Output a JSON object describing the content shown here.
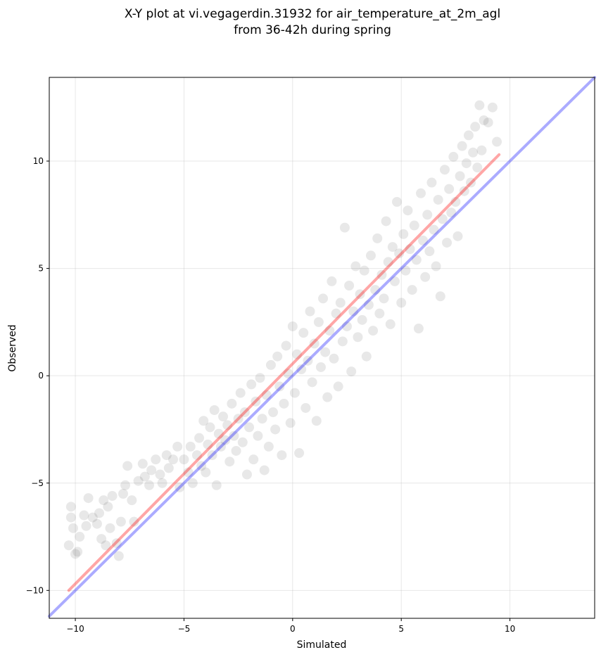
{
  "chart_data": {
    "type": "scatter",
    "title_line1": "X-Y plot at vi.vegagerdin.31932 for air_temperature_at_2m_agl",
    "title_line2": "from 36-42h during spring",
    "xlabel": "Simulated",
    "ylabel": "Observed",
    "xlim": [
      -11.2,
      13.9
    ],
    "ylim": [
      -11.3,
      13.9
    ],
    "xticks": [
      -10,
      -5,
      0,
      5,
      10
    ],
    "yticks": [
      -10,
      -5,
      0,
      5,
      10
    ],
    "xtick_labels": [
      "−10",
      "−5",
      "0",
      "5",
      "10"
    ],
    "ytick_labels": [
      "−10",
      "−5",
      "0",
      "5",
      "10"
    ],
    "grid": true,
    "colors": {
      "points": "#000000",
      "regression_line": "#ff0000",
      "identity_line": "#0000ff"
    },
    "series": [
      {
        "kind": "points",
        "description_points": [
          [
            -10.3,
            -7.9
          ],
          [
            -10.2,
            -6.1
          ],
          [
            -10.2,
            -6.6
          ],
          [
            -10.1,
            -7.1
          ],
          [
            -10.0,
            -8.3
          ],
          [
            -9.9,
            -8.2
          ],
          [
            -9.8,
            -7.5
          ],
          [
            -9.6,
            -6.5
          ],
          [
            -9.5,
            -7.0
          ],
          [
            -9.4,
            -5.7
          ],
          [
            -9.2,
            -6.6
          ],
          [
            -9.0,
            -6.9
          ],
          [
            -8.9,
            -6.4
          ],
          [
            -8.8,
            -7.6
          ],
          [
            -8.7,
            -5.8
          ],
          [
            -8.6,
            -7.9
          ],
          [
            -8.5,
            -6.1
          ],
          [
            -8.4,
            -7.1
          ],
          [
            -8.3,
            -5.6
          ],
          [
            -8.1,
            -7.8
          ],
          [
            -8.0,
            -8.4
          ],
          [
            -7.9,
            -6.8
          ],
          [
            -7.8,
            -5.5
          ],
          [
            -7.7,
            -5.1
          ],
          [
            -7.6,
            -4.2
          ],
          [
            -7.4,
            -5.8
          ],
          [
            -7.3,
            -6.8
          ],
          [
            -7.1,
            -4.9
          ],
          [
            -6.9,
            -4.1
          ],
          [
            -6.8,
            -4.7
          ],
          [
            -6.6,
            -5.1
          ],
          [
            -6.5,
            -4.4
          ],
          [
            -6.3,
            -3.9
          ],
          [
            -6.1,
            -4.6
          ],
          [
            -6.0,
            -5.0
          ],
          [
            -5.8,
            -3.7
          ],
          [
            -5.7,
            -4.3
          ],
          [
            -5.5,
            -3.9
          ],
          [
            -5.3,
            -3.3
          ],
          [
            -5.2,
            -5.2
          ],
          [
            -5.0,
            -3.9
          ],
          [
            -4.8,
            -4.5
          ],
          [
            -4.7,
            -3.3
          ],
          [
            -4.6,
            -5.0
          ],
          [
            -4.4,
            -3.7
          ],
          [
            -4.3,
            -2.9
          ],
          [
            -4.2,
            -4.2
          ],
          [
            -4.1,
            -2.1
          ],
          [
            -4.0,
            -4.5
          ],
          [
            -3.9,
            -3.2
          ],
          [
            -3.8,
            -2.4
          ],
          [
            -3.7,
            -3.7
          ],
          [
            -3.6,
            -1.6
          ],
          [
            -3.5,
            -5.1
          ],
          [
            -3.4,
            -2.7
          ],
          [
            -3.3,
            -3.3
          ],
          [
            -3.2,
            -1.9
          ],
          [
            -3.1,
            -3.0
          ],
          [
            -3.0,
            -2.3
          ],
          [
            -2.9,
            -4.0
          ],
          [
            -2.8,
            -1.3
          ],
          [
            -2.7,
            -2.8
          ],
          [
            -2.6,
            -3.5
          ],
          [
            -2.5,
            -2.0
          ],
          [
            -2.4,
            -0.8
          ],
          [
            -2.3,
            -3.1
          ],
          [
            -2.2,
            -1.7
          ],
          [
            -2.1,
            -4.6
          ],
          [
            -2.0,
            -2.4
          ],
          [
            -1.9,
            -0.4
          ],
          [
            -1.8,
            -3.9
          ],
          [
            -1.7,
            -1.2
          ],
          [
            -1.6,
            -2.8
          ],
          [
            -1.5,
            -0.1
          ],
          [
            -1.4,
            -2.0
          ],
          [
            -1.3,
            -4.4
          ],
          [
            -1.2,
            -0.9
          ],
          [
            -1.1,
            -3.3
          ],
          [
            -1.0,
            0.5
          ],
          [
            -0.9,
            -1.7
          ],
          [
            -0.8,
            -2.5
          ],
          [
            -0.7,
            0.9
          ],
          [
            -0.6,
            -0.5
          ],
          [
            -0.5,
            -3.7
          ],
          [
            -0.4,
            -1.3
          ],
          [
            -0.3,
            1.4
          ],
          [
            -0.2,
            0.1
          ],
          [
            -0.1,
            -2.2
          ],
          [
            0.0,
            2.3
          ],
          [
            0.1,
            -0.8
          ],
          [
            0.2,
            1.0
          ],
          [
            0.3,
            -3.6
          ],
          [
            0.4,
            0.3
          ],
          [
            0.5,
            2.0
          ],
          [
            0.6,
            -1.5
          ],
          [
            0.7,
            0.7
          ],
          [
            0.8,
            3.0
          ],
          [
            0.9,
            -0.3
          ],
          [
            1.0,
            1.5
          ],
          [
            1.1,
            -2.1
          ],
          [
            1.2,
            2.5
          ],
          [
            1.3,
            0.4
          ],
          [
            1.4,
            3.6
          ],
          [
            1.5,
            1.1
          ],
          [
            1.6,
            -1.0
          ],
          [
            1.7,
            2.1
          ],
          [
            1.8,
            4.4
          ],
          [
            1.9,
            0.8
          ],
          [
            2.0,
            2.9
          ],
          [
            2.1,
            -0.5
          ],
          [
            2.2,
            3.4
          ],
          [
            2.3,
            1.6
          ],
          [
            2.4,
            6.9
          ],
          [
            2.5,
            2.3
          ],
          [
            2.6,
            4.2
          ],
          [
            2.7,
            0.2
          ],
          [
            2.8,
            3.0
          ],
          [
            2.9,
            5.1
          ],
          [
            3.0,
            1.8
          ],
          [
            3.1,
            3.8
          ],
          [
            3.2,
            2.6
          ],
          [
            3.3,
            4.9
          ],
          [
            3.4,
            0.9
          ],
          [
            3.5,
            3.3
          ],
          [
            3.6,
            5.6
          ],
          [
            3.7,
            2.1
          ],
          [
            3.8,
            4.0
          ],
          [
            3.9,
            6.4
          ],
          [
            4.0,
            2.9
          ],
          [
            4.1,
            4.7
          ],
          [
            4.2,
            3.6
          ],
          [
            4.3,
            7.2
          ],
          [
            4.4,
            5.3
          ],
          [
            4.5,
            2.4
          ],
          [
            4.6,
            6.0
          ],
          [
            4.7,
            4.4
          ],
          [
            4.8,
            8.1
          ],
          [
            4.9,
            5.7
          ],
          [
            5.0,
            3.4
          ],
          [
            5.1,
            6.6
          ],
          [
            5.2,
            4.9
          ],
          [
            5.3,
            7.7
          ],
          [
            5.4,
            5.9
          ],
          [
            5.5,
            4.0
          ],
          [
            5.6,
            7.0
          ],
          [
            5.7,
            5.4
          ],
          [
            5.8,
            2.2
          ],
          [
            5.9,
            8.5
          ],
          [
            6.0,
            6.3
          ],
          [
            6.1,
            4.6
          ],
          [
            6.2,
            7.5
          ],
          [
            6.3,
            5.8
          ],
          [
            6.4,
            9.0
          ],
          [
            6.5,
            6.8
          ],
          [
            6.6,
            5.1
          ],
          [
            6.7,
            8.2
          ],
          [
            6.8,
            3.7
          ],
          [
            6.9,
            7.3
          ],
          [
            7.0,
            9.6
          ],
          [
            7.1,
            6.2
          ],
          [
            7.2,
            8.7
          ],
          [
            7.3,
            7.6
          ],
          [
            7.4,
            10.2
          ],
          [
            7.5,
            8.1
          ],
          [
            7.6,
            6.5
          ],
          [
            7.7,
            9.3
          ],
          [
            7.8,
            10.7
          ],
          [
            7.9,
            8.6
          ],
          [
            8.0,
            9.9
          ],
          [
            8.1,
            11.2
          ],
          [
            8.2,
            9.0
          ],
          [
            8.3,
            10.4
          ],
          [
            8.4,
            11.6
          ],
          [
            8.5,
            9.7
          ],
          [
            8.6,
            12.6
          ],
          [
            8.7,
            10.5
          ],
          [
            8.8,
            11.9
          ],
          [
            9.0,
            11.8
          ],
          [
            9.2,
            12.5
          ],
          [
            9.4,
            10.9
          ]
        ]
      },
      {
        "kind": "regression",
        "x": [
          -10.3,
          9.5
        ],
        "y": [
          -10.0,
          10.3
        ]
      },
      {
        "kind": "identity",
        "x": [
          -11.2,
          13.9
        ],
        "y": [
          -11.2,
          13.9
        ]
      }
    ]
  }
}
